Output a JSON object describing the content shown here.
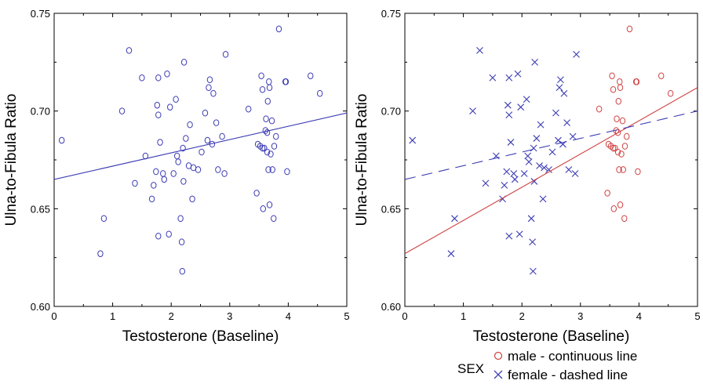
{
  "chart_data": [
    {
      "type": "scatter",
      "xlabel": "Testosterone (Baseline)",
      "ylabel": "Ulna-to-Fibula Ratio",
      "xlim": [
        0,
        5
      ],
      "ylim": [
        0.6,
        0.75
      ],
      "xticks": [
        "0",
        "1",
        "2",
        "3",
        "4",
        "5"
      ],
      "yticks": [
        "0.60",
        "0.65",
        "0.70",
        "0.75"
      ],
      "grid": false,
      "point_color": "#3c3cb4",
      "fit_line": {
        "x": [
          0,
          5
        ],
        "y": [
          0.665,
          0.699
        ],
        "color": "#3c3cb4",
        "style": "solid"
      }
    },
    {
      "type": "scatter",
      "xlabel": "Testosterone (Baseline)",
      "ylabel": "Ulna-to-Fibula Ratio",
      "xlim": [
        0,
        5
      ],
      "ylim": [
        0.6,
        0.75
      ],
      "xticks": [
        "0",
        "1",
        "2",
        "3",
        "4",
        "5"
      ],
      "yticks": [
        "0.60",
        "0.65",
        "0.70",
        "0.75"
      ],
      "grid": false,
      "legend": {
        "title": "SEX",
        "placement": "bottom-right",
        "entries": [
          {
            "label": "male - continuous line",
            "marker": "circle",
            "color": "#d04040"
          },
          {
            "label": "female - dashed line",
            "marker": "x",
            "color": "#3c3cb4"
          }
        ]
      },
      "fit_lines": [
        {
          "series": "male",
          "x": [
            0,
            5
          ],
          "y": [
            0.627,
            0.712
          ],
          "color": "#d04040",
          "style": "solid"
        },
        {
          "series": "female",
          "x": [
            0,
            5
          ],
          "y": [
            0.665,
            0.7
          ],
          "color": "#3c3cb4",
          "style": "dashed"
        }
      ]
    }
  ],
  "points": {
    "female": [
      [
        0.13,
        0.685
      ],
      [
        0.79,
        0.627
      ],
      [
        0.85,
        0.645
      ],
      [
        1.16,
        0.7
      ],
      [
        1.28,
        0.731
      ],
      [
        1.38,
        0.663
      ],
      [
        1.5,
        0.717
      ],
      [
        1.56,
        0.677
      ],
      [
        1.67,
        0.655
      ],
      [
        1.7,
        0.662
      ],
      [
        1.74,
        0.669
      ],
      [
        1.76,
        0.703
      ],
      [
        1.78,
        0.698
      ],
      [
        1.78,
        0.717
      ],
      [
        1.78,
        0.636
      ],
      [
        1.81,
        0.684
      ],
      [
        1.86,
        0.668
      ],
      [
        1.88,
        0.665
      ],
      [
        1.93,
        0.719
      ],
      [
        1.96,
        0.637
      ],
      [
        1.98,
        0.702
      ],
      [
        2.04,
        0.668
      ],
      [
        2.08,
        0.706
      ],
      [
        2.1,
        0.677
      ],
      [
        2.12,
        0.674
      ],
      [
        2.16,
        0.645
      ],
      [
        2.18,
        0.633
      ],
      [
        2.19,
        0.618
      ],
      [
        2.2,
        0.681
      ],
      [
        2.21,
        0.664
      ],
      [
        2.22,
        0.725
      ],
      [
        2.25,
        0.686
      ],
      [
        2.3,
        0.672
      ],
      [
        2.32,
        0.693
      ],
      [
        2.36,
        0.655
      ],
      [
        2.38,
        0.671
      ],
      [
        2.46,
        0.67
      ],
      [
        2.52,
        0.679
      ],
      [
        2.58,
        0.699
      ],
      [
        2.62,
        0.685
      ],
      [
        2.64,
        0.712
      ],
      [
        2.66,
        0.716
      ],
      [
        2.7,
        0.683
      ],
      [
        2.72,
        0.709
      ],
      [
        2.77,
        0.694
      ],
      [
        2.8,
        0.67
      ],
      [
        2.87,
        0.687
      ],
      [
        2.91,
        0.668
      ],
      [
        2.93,
        0.729
      ]
    ],
    "male": [
      [
        3.32,
        0.701
      ],
      [
        3.46,
        0.658
      ],
      [
        3.48,
        0.683
      ],
      [
        3.52,
        0.682
      ],
      [
        3.54,
        0.718
      ],
      [
        3.56,
        0.681
      ],
      [
        3.56,
        0.711
      ],
      [
        3.57,
        0.65
      ],
      [
        3.59,
        0.681
      ],
      [
        3.61,
        0.69
      ],
      [
        3.62,
        0.696
      ],
      [
        3.64,
        0.689
      ],
      [
        3.64,
        0.679
      ],
      [
        3.65,
        0.705
      ],
      [
        3.66,
        0.67
      ],
      [
        3.67,
        0.715
      ],
      [
        3.68,
        0.652
      ],
      [
        3.68,
        0.712
      ],
      [
        3.7,
        0.678
      ],
      [
        3.72,
        0.695
      ],
      [
        3.73,
        0.67
      ],
      [
        3.75,
        0.645
      ],
      [
        3.76,
        0.682
      ],
      [
        3.79,
        0.687
      ],
      [
        3.84,
        0.742
      ],
      [
        3.95,
        0.715
      ],
      [
        3.96,
        0.715
      ],
      [
        3.98,
        0.669
      ],
      [
        4.38,
        0.718
      ],
      [
        4.54,
        0.709
      ]
    ]
  }
}
